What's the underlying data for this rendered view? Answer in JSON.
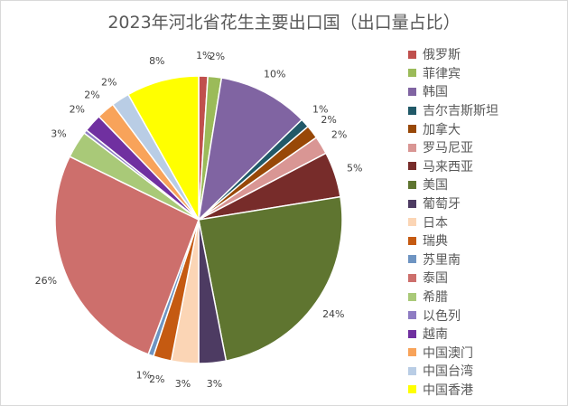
{
  "chart_data": {
    "type": "pie",
    "title": "2023年河北省花生主要出口国（出口量占比）",
    "legend_position": "right",
    "slices": [
      {
        "label": "俄罗斯",
        "value": 1,
        "display": "1%",
        "color": "#c0504d"
      },
      {
        "label": "菲律宾",
        "value": 1.5,
        "display": "2%",
        "color": "#9bbb59"
      },
      {
        "label": "韩国",
        "value": 10,
        "display": "10%",
        "color": "#8064a2"
      },
      {
        "label": "吉尔吉斯斯坦",
        "value": 1,
        "display": "1%",
        "color": "#215968"
      },
      {
        "label": "加拿大",
        "value": 1.5,
        "display": "2%",
        "color": "#984807"
      },
      {
        "label": "罗马尼亚",
        "value": 2,
        "display": "2%",
        "color": "#d99694"
      },
      {
        "label": "马来西亚",
        "value": 5,
        "display": "5%",
        "color": "#772c2a"
      },
      {
        "label": "美国",
        "value": 24,
        "display": "24%",
        "color": "#5f7530"
      },
      {
        "label": "葡萄牙",
        "value": 3,
        "display": "3%",
        "color": "#4d3b62"
      },
      {
        "label": "日本",
        "value": 3,
        "display": "3%",
        "color": "#fbd5b5"
      },
      {
        "label": "瑞典",
        "value": 2,
        "display": "2%",
        "color": "#c55a11"
      },
      {
        "label": "苏里南",
        "value": 0.6,
        "display": "1%",
        "color": "#6e94c2"
      },
      {
        "label": "泰国",
        "value": 26,
        "display": "26%",
        "color": "#cd6f6c"
      },
      {
        "label": "希腊",
        "value": 3,
        "display": "3%",
        "color": "#a9c978"
      },
      {
        "label": "以色列",
        "value": 0.4,
        "display": "",
        "color": "#8e7cc3"
      },
      {
        "label": "越南",
        "value": 2,
        "display": "2%",
        "color": "#7030a0"
      },
      {
        "label": "中国澳门",
        "value": 2,
        "display": "2%",
        "color": "#f8a35a"
      },
      {
        "label": "中国台湾",
        "value": 2,
        "display": "2%",
        "color": "#b9cde5"
      },
      {
        "label": "中国香港",
        "value": 8,
        "display": "8%",
        "color": "#ffff00"
      }
    ]
  }
}
